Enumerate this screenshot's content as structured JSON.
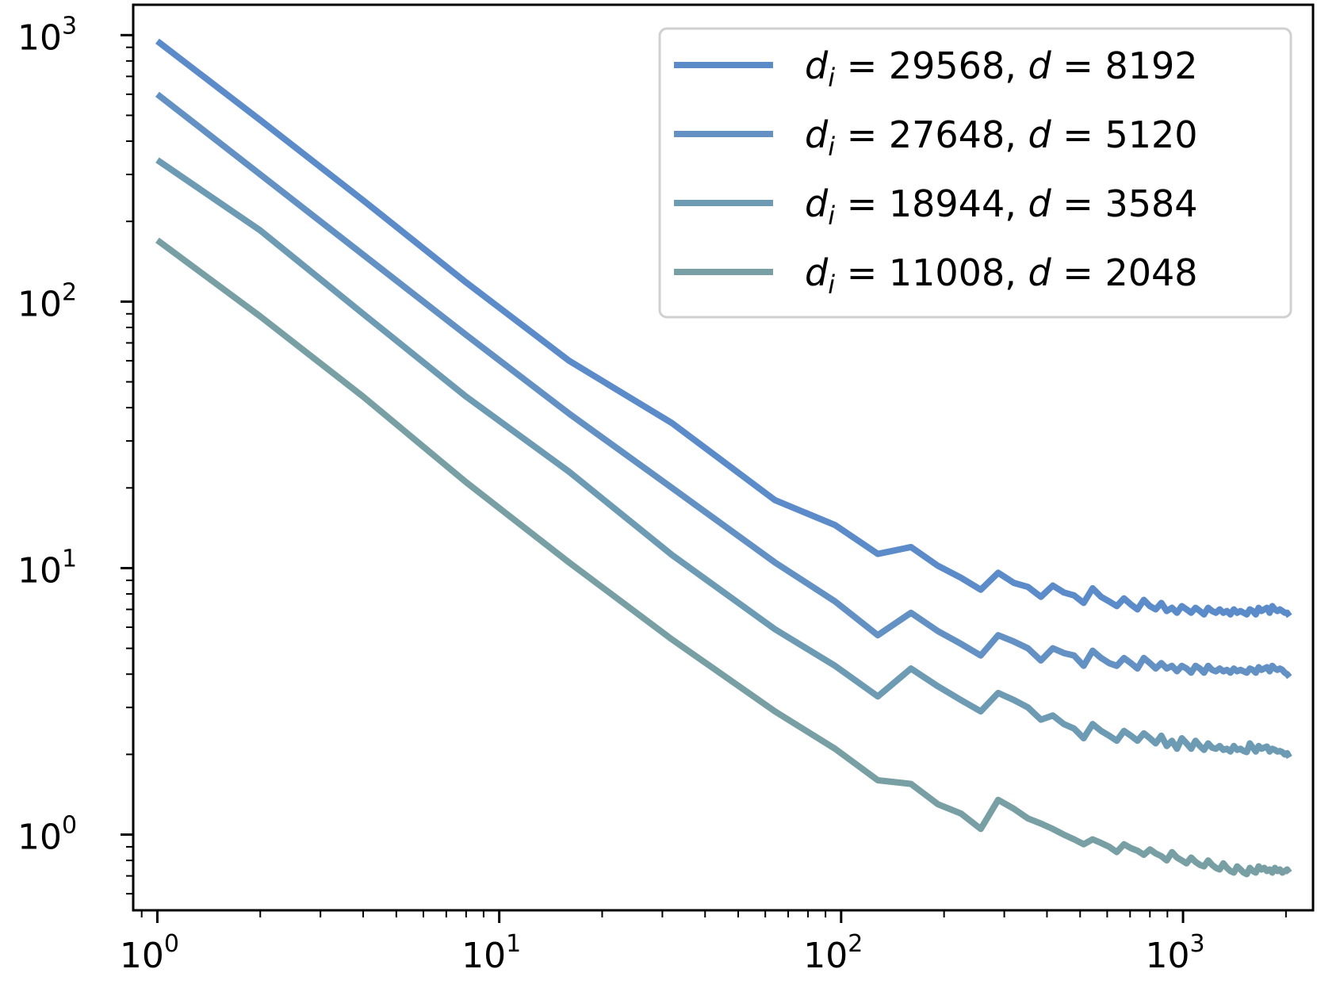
{
  "chart_data": {
    "type": "line",
    "title": "",
    "xlabel": "",
    "ylabel": "",
    "x_scale": "log",
    "y_scale": "log",
    "xlim": [
      0.85,
      2400
    ],
    "ylim": [
      0.52,
      1300
    ],
    "x_ticks": [
      {
        "base": "10",
        "exp": "0",
        "value": 1
      },
      {
        "base": "10",
        "exp": "1",
        "value": 10
      },
      {
        "base": "10",
        "exp": "2",
        "value": 100
      },
      {
        "base": "10",
        "exp": "3",
        "value": 1000
      }
    ],
    "y_ticks": [
      {
        "base": "10",
        "exp": "0",
        "value": 1
      },
      {
        "base": "10",
        "exp": "1",
        "value": 10
      },
      {
        "base": "10",
        "exp": "2",
        "value": 100
      },
      {
        "base": "10",
        "exp": "3",
        "value": 1000
      }
    ],
    "grid": false,
    "legend_position": "top-right",
    "x": [
      1,
      2,
      4,
      8,
      16,
      32,
      64,
      96,
      128,
      160,
      192,
      224,
      256,
      288,
      320,
      352,
      384,
      416,
      448,
      480,
      512,
      544,
      576,
      608,
      640,
      672,
      704,
      736,
      768,
      800,
      832,
      864,
      896,
      928,
      960,
      992,
      1024,
      1056,
      1088,
      1120,
      1152,
      1184,
      1216,
      1248,
      1280,
      1312,
      1344,
      1376,
      1408,
      1440,
      1472,
      1504,
      1536,
      1568,
      1600,
      1632,
      1664,
      1696,
      1728,
      1760,
      1792,
      1824,
      1856,
      1888,
      1920,
      1952,
      1984,
      2016,
      2048
    ],
    "series": [
      {
        "name_parts": {
          "d_i_label": "d",
          "d_i_sub": "i",
          "eq": " = ",
          "d_i_value": "29568",
          "sep": ", ",
          "d_label": "d",
          "d_value": "8192"
        },
        "color": "#5b8bc9",
        "values": [
          950,
          480,
          240,
          118,
          60,
          35,
          18,
          14.5,
          11.3,
          12,
          10.2,
          9.2,
          8.3,
          9.6,
          8.8,
          8.5,
          7.8,
          8.6,
          8.1,
          7.9,
          7.4,
          8.4,
          7.8,
          7.5,
          7.2,
          7.7,
          7.3,
          7.0,
          7.6,
          7.2,
          7.0,
          7.4,
          6.9,
          7.1,
          6.8,
          7.2,
          7.0,
          6.8,
          7.1,
          6.9,
          6.7,
          7.1,
          6.9,
          6.8,
          7.0,
          6.8,
          6.9,
          6.7,
          7.0,
          6.8,
          6.9,
          6.8,
          6.7,
          7.0,
          6.9,
          6.7,
          7.1,
          6.9,
          7.0,
          7.1,
          6.8,
          7.2,
          7.0,
          6.9,
          7.0,
          6.9,
          6.8,
          6.8,
          6.6
        ]
      },
      {
        "name_parts": {
          "d_i_label": "d",
          "d_i_sub": "i",
          "eq": " = ",
          "d_i_value": "27648",
          "sep": ", ",
          "d_label": "d",
          "d_value": "5120"
        },
        "color": "#6391c4",
        "values": [
          600,
          300,
          150,
          75,
          38,
          20,
          10.5,
          7.5,
          5.6,
          6.8,
          5.8,
          5.2,
          4.7,
          5.6,
          5.3,
          5.0,
          4.5,
          5.0,
          4.8,
          4.7,
          4.3,
          4.9,
          4.6,
          4.4,
          4.3,
          4.6,
          4.4,
          4.2,
          4.6,
          4.4,
          4.2,
          4.4,
          4.2,
          4.3,
          4.1,
          4.3,
          4.2,
          4.05,
          4.3,
          4.2,
          4.05,
          4.3,
          4.15,
          4.1,
          4.2,
          4.1,
          4.15,
          4.05,
          4.2,
          4.1,
          4.15,
          4.1,
          4.05,
          4.2,
          4.15,
          4.05,
          4.25,
          4.15,
          4.2,
          4.25,
          4.1,
          4.3,
          4.2,
          4.15,
          4.2,
          4.15,
          4.05,
          4.0,
          3.9
        ]
      },
      {
        "name_parts": {
          "d_i_label": "d",
          "d_i_sub": "i",
          "eq": " = ",
          "d_i_value": "18944",
          "sep": ", ",
          "d_label": "d",
          "d_value": "3584"
        },
        "color": "#6d9bb3",
        "values": [
          340,
          185,
          90,
          44,
          23,
          11.2,
          5.9,
          4.3,
          3.3,
          4.2,
          3.6,
          3.2,
          2.9,
          3.4,
          3.2,
          3.0,
          2.7,
          2.8,
          2.6,
          2.5,
          2.3,
          2.6,
          2.45,
          2.35,
          2.25,
          2.45,
          2.35,
          2.25,
          2.4,
          2.3,
          2.2,
          2.35,
          2.15,
          2.25,
          2.1,
          2.3,
          2.2,
          2.1,
          2.25,
          2.15,
          2.08,
          2.2,
          2.12,
          2.1,
          2.15,
          2.08,
          2.1,
          2.05,
          2.15,
          2.08,
          2.1,
          2.06,
          2.04,
          2.2,
          2.12,
          2.05,
          2.15,
          2.1,
          2.12,
          2.14,
          2.05,
          2.1,
          2.08,
          2.05,
          2.06,
          2.04,
          2.0,
          2.02,
          1.95
        ]
      },
      {
        "name_parts": {
          "d_i_label": "d",
          "d_i_sub": "i",
          "eq": " = ",
          "d_i_value": "11008",
          "sep": ", ",
          "d_label": "d",
          "d_value": "2048"
        },
        "color": "#78a0a4",
        "values": [
          170,
          88,
          44,
          21,
          10.5,
          5.4,
          2.9,
          2.1,
          1.6,
          1.55,
          1.3,
          1.2,
          1.05,
          1.35,
          1.25,
          1.15,
          1.1,
          1.05,
          1.0,
          0.96,
          0.92,
          0.96,
          0.93,
          0.9,
          0.86,
          0.92,
          0.89,
          0.87,
          0.84,
          0.88,
          0.85,
          0.83,
          0.8,
          0.86,
          0.82,
          0.8,
          0.78,
          0.82,
          0.79,
          0.77,
          0.76,
          0.8,
          0.77,
          0.75,
          0.74,
          0.78,
          0.75,
          0.73,
          0.72,
          0.76,
          0.74,
          0.72,
          0.71,
          0.75,
          0.73,
          0.72,
          0.76,
          0.74,
          0.75,
          0.73,
          0.74,
          0.72,
          0.75,
          0.73,
          0.74,
          0.72,
          0.73,
          0.74,
          0.72
        ]
      }
    ]
  }
}
